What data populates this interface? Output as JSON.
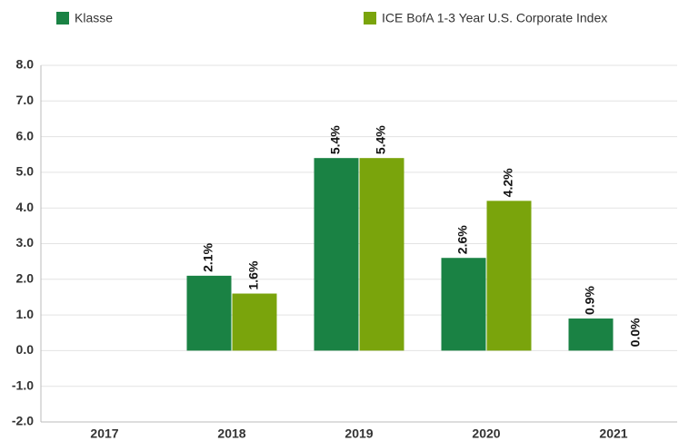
{
  "chart_data": {
    "type": "bar",
    "categories": [
      "2017",
      "2018",
      "2019",
      "2020",
      "2021"
    ],
    "series": [
      {
        "name": "Klasse",
        "color": "#1a8244",
        "values": [
          null,
          2.1,
          5.4,
          2.6,
          0.9
        ],
        "value_labels": [
          null,
          "2.1%",
          "5.4%",
          "2.6%",
          "0.9%"
        ]
      },
      {
        "name": "ICE BofA 1-3 Year U.S. Corporate Index",
        "color": "#7aa40c",
        "values": [
          null,
          1.6,
          5.4,
          4.2,
          0.0
        ],
        "value_labels": [
          null,
          "1.6%",
          "5.4%",
          "4.2%",
          "0.0%"
        ]
      }
    ],
    "ylim": [
      -2,
      8
    ],
    "yticks": [
      {
        "value": -2,
        "label": "-2.0"
      },
      {
        "value": -1,
        "label": "-1.0"
      },
      {
        "value": 0,
        "label": "0.0"
      },
      {
        "value": 1,
        "label": "1.0"
      },
      {
        "value": 2,
        "label": "2.0"
      },
      {
        "value": 3,
        "label": "3.0"
      },
      {
        "value": 4,
        "label": "4.0"
      },
      {
        "value": 5,
        "label": "5.0"
      },
      {
        "value": 6,
        "label": "6.0"
      },
      {
        "value": 7,
        "label": "7.0"
      },
      {
        "value": 8,
        "label": "8.0"
      }
    ],
    "grid": true
  }
}
